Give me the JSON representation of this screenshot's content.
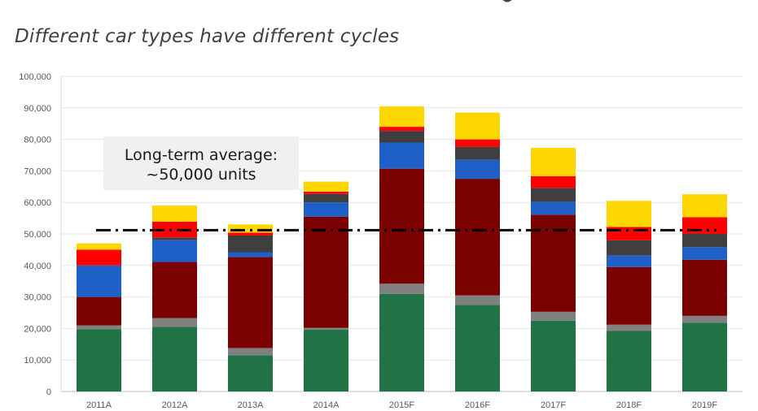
{
  "subtitle": "Different car types have different cycles",
  "chart_data": {
    "type": "bar",
    "stacked": true,
    "title": "",
    "xlabel": "",
    "ylabel": "",
    "ylim": [
      0,
      100000
    ],
    "yticks": [
      0,
      10000,
      20000,
      30000,
      40000,
      50000,
      60000,
      70000,
      80000,
      90000,
      100000
    ],
    "ytick_labels": [
      "0",
      "10,000",
      "20,000",
      "30,000",
      "40,000",
      "50,000",
      "60,000",
      "70,000",
      "80,000",
      "90,000",
      "100,000"
    ],
    "grid": true,
    "categories": [
      "2011A",
      "2012A",
      "2013A",
      "2014A",
      "2015F",
      "2016F",
      "2017F",
      "2018F",
      "2019F"
    ],
    "series": [
      {
        "color": "#217346",
        "values": [
          19800,
          20500,
          11500,
          19600,
          31000,
          27500,
          22500,
          19200,
          21800
        ]
      },
      {
        "color": "#808080",
        "values": [
          1200,
          2800,
          2300,
          600,
          3200,
          3000,
          2800,
          2000,
          2200
        ]
      },
      {
        "color": "#7b0000",
        "values": [
          9000,
          17800,
          28900,
          35300,
          36500,
          37000,
          30800,
          18300,
          17800
        ]
      },
      {
        "color": "#1f5fc8",
        "values": [
          10000,
          7000,
          1500,
          4500,
          8300,
          6000,
          4100,
          3700,
          4000
        ]
      },
      {
        "color": "#3f3f3f",
        "values": [
          0,
          800,
          5300,
          2700,
          3700,
          4100,
          4400,
          4800,
          4200
        ]
      },
      {
        "color": "#ff0000",
        "values": [
          5000,
          5000,
          900,
          700,
          1300,
          2400,
          3700,
          4200,
          5300
        ]
      },
      {
        "color": "#ffd700",
        "values": [
          2000,
          5100,
          2600,
          3200,
          6500,
          8500,
          9000,
          8300,
          7300
        ]
      }
    ],
    "reference_line": {
      "value": 51200,
      "style": "dash-dot",
      "color": "#000000"
    },
    "annotation": {
      "lines": [
        "Long-term average:",
        "~50,000 units"
      ]
    }
  }
}
